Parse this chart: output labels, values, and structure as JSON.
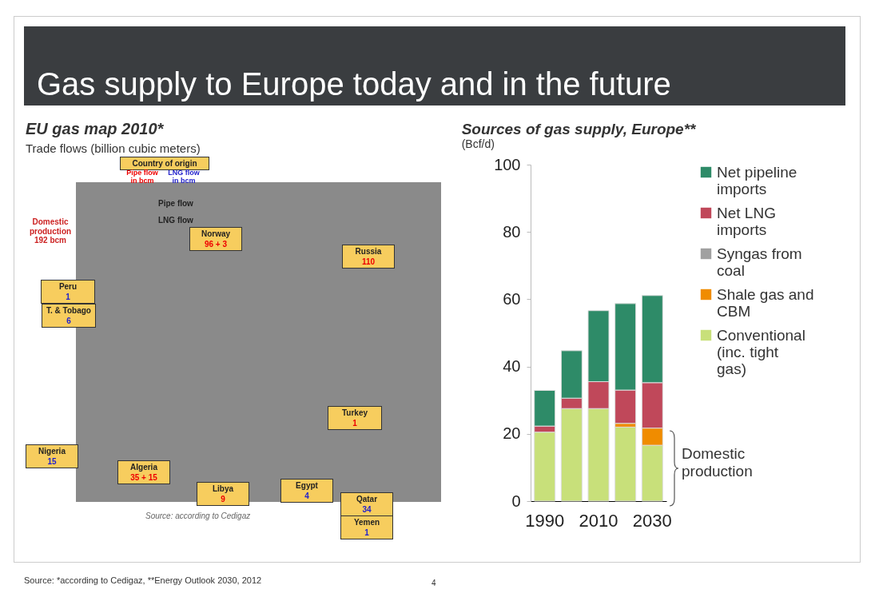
{
  "chart_data": [
    {
      "type": "other",
      "title": "Gas supply to Europe today and in the future",
      "subtitle": "EU gas map 2010*",
      "annotations": [
        "Trade flows (billion cubic meters)",
        "Country of origin",
        "Pipe flow\nin bcm",
        "LNG flow\nin bcm",
        "Pipe flow",
        "LNG flow",
        "Domestic\nproduction\n192 bcm",
        "Norway\n96 + 3",
        "Russia\n110",
        "Peru\n1",
        "T. & Tobago\n6",
        "Turkey\n1",
        "Nigeria\n15",
        "Algeria\n35 + 15",
        "Libya\n9",
        "Egypt\n4",
        "Qatar\n34",
        "Yemen\n1",
        "Source: according to Cedigaz",
        "Source: *according to Cedigaz, **Energy Outlook 2030, 2012",
        "4"
      ]
    },
    {
      "type": "bar",
      "stacked": true,
      "title": "Sources of gas supply, Europe**",
      "ylabel": "(Bcf/d)",
      "categories": [
        "1990",
        null,
        "2010",
        null,
        "2030"
      ],
      "series": [
        {
          "name": "Conventional (inc. tight gas)",
          "color": "#c8e07a",
          "values": [
            20.5,
            27.5,
            27.5,
            22.0,
            16.6
          ]
        },
        {
          "name": "Shale gas and CBM",
          "color": "#f08c00",
          "values": [
            null,
            null,
            null,
            1.1,
            5.1
          ]
        },
        {
          "name": "Syngas from coal",
          "color": "#a0a0a0",
          "values": [
            null,
            null,
            null,
            null,
            null
          ]
        },
        {
          "name": "Net LNG imports",
          "color": "#c0485a",
          "values": [
            1.8,
            3.1,
            8.0,
            9.9,
            13.5
          ]
        },
        {
          "name": "Net pipeline imports",
          "color": "#2e8b68",
          "values": [
            10.6,
            14.1,
            21.1,
            25.7,
            25.9
          ]
        }
      ],
      "ylim": [
        0,
        100
      ],
      "yticks": [
        0,
        20,
        40,
        60,
        80,
        100
      ],
      "grid": false,
      "legend": "right",
      "annotations": [
        "Domestic production"
      ]
    }
  ]
}
